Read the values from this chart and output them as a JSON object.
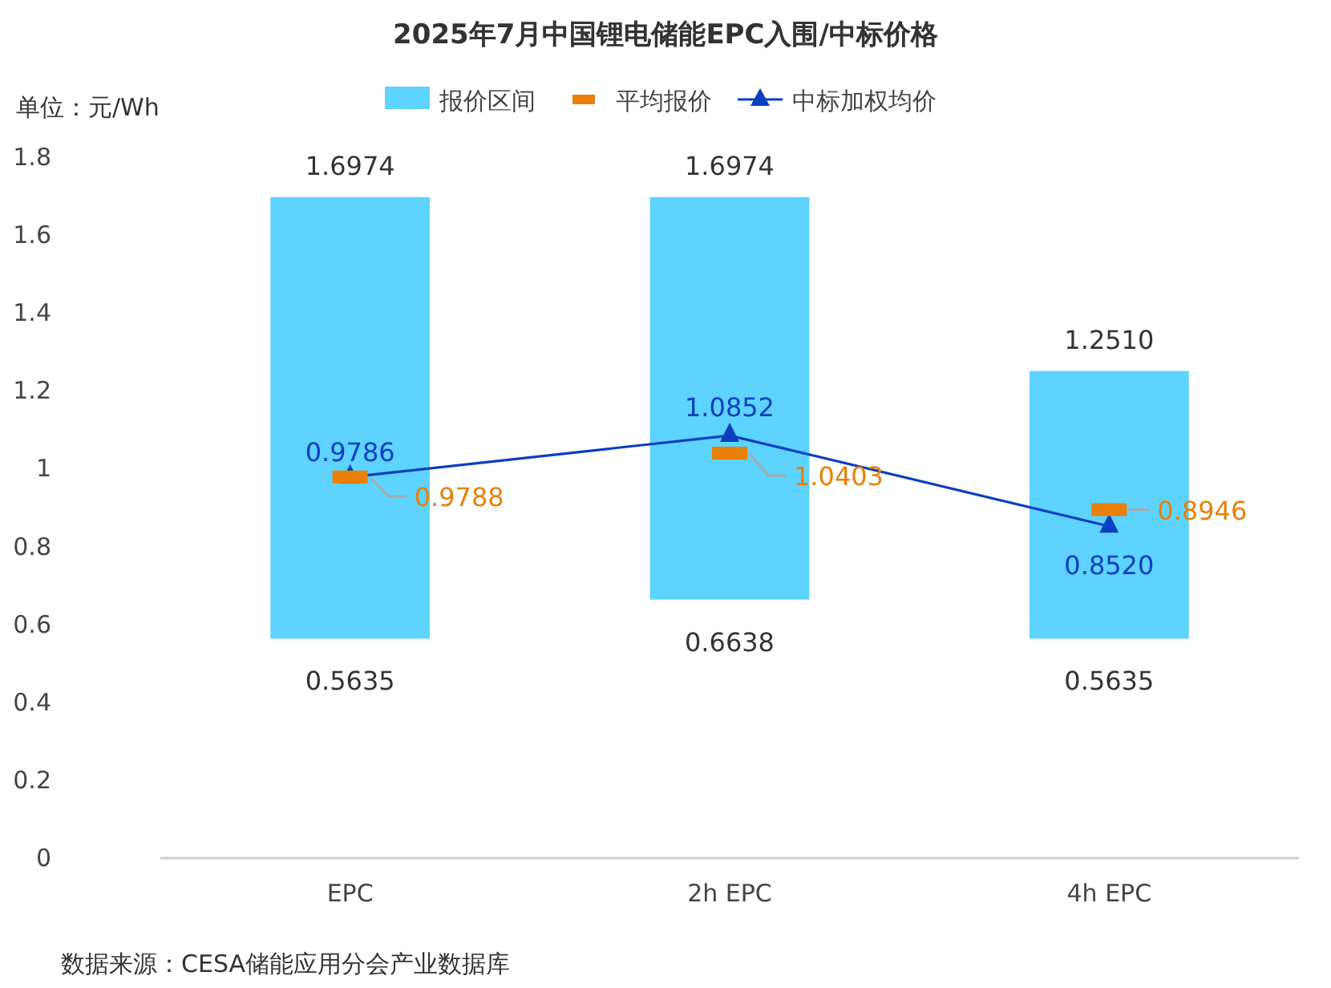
{
  "chart_data": {
    "type": "bar",
    "title": "2025年7月中国锂电储能EPC入围/中标价格",
    "ylabel": "单位：元/Wh",
    "categories": [
      "EPC",
      "2h EPC",
      "4h EPC"
    ],
    "ylim": [
      0,
      1.8
    ],
    "yticks": [
      0,
      0.2,
      0.4,
      0.6,
      0.8,
      1,
      1.2,
      1.4,
      1.6,
      1.8
    ],
    "legend": "top",
    "grid": false,
    "series": [
      {
        "name": "报价区间",
        "color": "#5dd3fe",
        "base": [
          0.5635,
          0.6638,
          0.5635
        ],
        "values": [
          1.1339,
          1.0336,
          0.6875
        ]
      },
      {
        "name": "平均报价",
        "type": "scatter",
        "color": "#e8800a",
        "values": [
          0.9788,
          1.0403,
          0.8946
        ],
        "value_labels": [
          "0.9788",
          "1.0403",
          "0.8946"
        ]
      },
      {
        "name": "中标加权均价",
        "type": "line",
        "color": "#0b3fbf",
        "marker": "triangle",
        "values": [
          0.9786,
          1.0852,
          0.852
        ],
        "value_labels": [
          "0.9786",
          "1.0852",
          "0.8520"
        ]
      }
    ],
    "annotations": [
      {
        "text": "1.6974",
        "x": "EPC",
        "y": 1.6974
      },
      {
        "text": "1.6974",
        "x": "2h EPC",
        "y": 1.6974
      },
      {
        "text": "1.2510",
        "x": "4h EPC",
        "y": 1.251
      },
      {
        "text": "0.5635",
        "x": "EPC",
        "y": 0.5635
      },
      {
        "text": "0.6638",
        "x": "2h EPC",
        "y": 0.6638
      },
      {
        "text": "0.5635",
        "x": "4h EPC",
        "y": 0.5635
      },
      "数据来源：CESA储能应用分会产业数据库"
    ]
  }
}
